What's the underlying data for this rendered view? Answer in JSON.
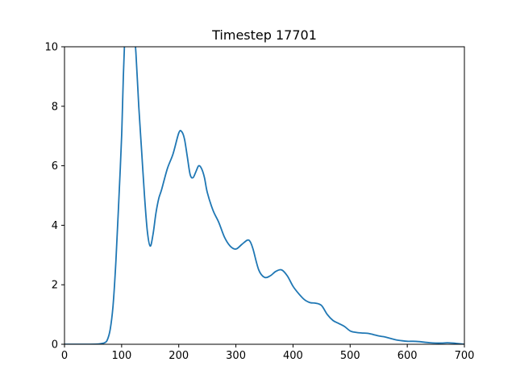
{
  "chart_data": {
    "type": "line",
    "title": "Timestep 17701",
    "xlabel": "",
    "ylabel": "",
    "xlim": [
      0,
      700
    ],
    "ylim": [
      0,
      10
    ],
    "xticks": [
      0,
      100,
      200,
      300,
      400,
      500,
      600,
      700
    ],
    "yticks": [
      0,
      2,
      4,
      6,
      8,
      10
    ],
    "grid": false,
    "line_color": "#1f77b4",
    "series": [
      {
        "x": [
          0,
          20,
          40,
          60,
          70,
          75,
          80,
          85,
          90,
          95,
          100,
          103,
          106,
          110,
          115,
          120,
          125,
          130,
          135,
          140,
          145,
          150,
          155,
          160,
          165,
          170,
          180,
          190,
          200,
          205,
          210,
          215,
          220,
          225,
          230,
          235,
          240,
          245,
          250,
          260,
          270,
          280,
          290,
          300,
          310,
          320,
          325,
          330,
          340,
          350,
          360,
          370,
          380,
          390,
          400,
          410,
          420,
          430,
          440,
          450,
          460,
          470,
          480,
          490,
          500,
          510,
          520,
          530,
          540,
          550,
          560,
          570,
          580,
          590,
          600,
          610,
          620,
          630,
          640,
          650,
          660,
          670,
          680,
          690,
          700
        ],
        "y": [
          0.0,
          0.0,
          0.0,
          0.01,
          0.05,
          0.15,
          0.5,
          1.3,
          2.8,
          4.8,
          7.0,
          9.0,
          10.5,
          12.0,
          12.5,
          11.0,
          9.8,
          8.0,
          6.5,
          5.0,
          3.8,
          3.3,
          3.7,
          4.4,
          4.9,
          5.2,
          5.9,
          6.4,
          7.1,
          7.15,
          6.9,
          6.3,
          5.7,
          5.6,
          5.8,
          6.0,
          5.9,
          5.6,
          5.1,
          4.5,
          4.1,
          3.6,
          3.3,
          3.2,
          3.35,
          3.5,
          3.45,
          3.2,
          2.5,
          2.25,
          2.3,
          2.45,
          2.5,
          2.3,
          1.95,
          1.7,
          1.5,
          1.4,
          1.38,
          1.3,
          1.0,
          0.8,
          0.7,
          0.6,
          0.45,
          0.4,
          0.38,
          0.37,
          0.33,
          0.28,
          0.25,
          0.2,
          0.15,
          0.12,
          0.1,
          0.1,
          0.09,
          0.07,
          0.05,
          0.04,
          0.04,
          0.05,
          0.04,
          0.02,
          0.0
        ]
      }
    ]
  }
}
